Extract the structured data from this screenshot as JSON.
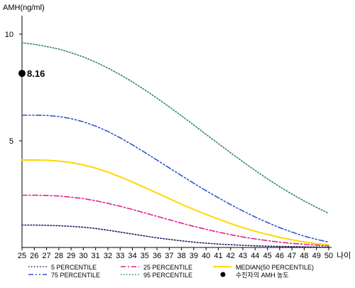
{
  "chart_data": {
    "type": "line",
    "ylabel": "AMH(ng/ml)",
    "xlabel": "나이",
    "xlim": [
      25,
      50
    ],
    "ylim": [
      0,
      11
    ],
    "x_ticks": [
      25,
      26,
      27,
      28,
      29,
      30,
      31,
      32,
      33,
      34,
      35,
      36,
      37,
      38,
      39,
      40,
      41,
      42,
      43,
      44,
      45,
      46,
      47,
      48,
      49,
      50
    ],
    "y_ticks": [
      5,
      10
    ],
    "grid": false,
    "legend_position": "bottom",
    "x": [
      25,
      26,
      27,
      28,
      29,
      30,
      31,
      32,
      33,
      34,
      35,
      36,
      37,
      38,
      39,
      40,
      41,
      42,
      43,
      44,
      45,
      46,
      47,
      48,
      49,
      50
    ],
    "series": [
      {
        "name": "5 PERCENTILE",
        "style": "dotted",
        "color": "#1a1a66",
        "values": [
          1.05,
          1.05,
          1.04,
          1.02,
          0.99,
          0.95,
          0.89,
          0.81,
          0.72,
          0.63,
          0.54,
          0.45,
          0.38,
          0.31,
          0.25,
          0.2,
          0.16,
          0.13,
          0.1,
          0.08,
          0.06,
          0.05,
          0.04,
          0.03,
          0.02,
          0.02
        ]
      },
      {
        "name": "25 PERCENTILE",
        "style": "dash-dot",
        "color": "#e0208f",
        "values": [
          2.45,
          2.45,
          2.44,
          2.41,
          2.36,
          2.29,
          2.19,
          2.07,
          1.93,
          1.78,
          1.62,
          1.46,
          1.3,
          1.14,
          0.99,
          0.85,
          0.72,
          0.6,
          0.49,
          0.4,
          0.32,
          0.25,
          0.19,
          0.15,
          0.11,
          0.08
        ]
      },
      {
        "name": "MEDIAN(50 PERCENTILE)",
        "style": "solid",
        "color": "#ffd700",
        "values": [
          4.1,
          4.1,
          4.09,
          4.05,
          3.98,
          3.87,
          3.72,
          3.53,
          3.31,
          3.07,
          2.81,
          2.55,
          2.29,
          2.03,
          1.78,
          1.55,
          1.33,
          1.12,
          0.93,
          0.76,
          0.61,
          0.47,
          0.36,
          0.26,
          0.18,
          0.12
        ]
      },
      {
        "name": "75 PERCENTILE",
        "style": "dash-dot-dot",
        "color": "#3355cc",
        "values": [
          6.2,
          6.2,
          6.19,
          6.14,
          6.04,
          5.89,
          5.69,
          5.44,
          5.14,
          4.81,
          4.46,
          4.1,
          3.73,
          3.37,
          3.01,
          2.66,
          2.33,
          2.01,
          1.71,
          1.43,
          1.17,
          0.93,
          0.72,
          0.53,
          0.38,
          0.25
        ]
      },
      {
        "name": "95 PERCENTILE",
        "style": "dotted",
        "color": "#2e8b57",
        "values": [
          9.6,
          9.52,
          9.42,
          9.3,
          9.13,
          8.93,
          8.69,
          8.41,
          8.1,
          7.76,
          7.39,
          7.0,
          6.59,
          6.17,
          5.74,
          5.3,
          4.87,
          4.44,
          4.02,
          3.61,
          3.22,
          2.85,
          2.5,
          2.18,
          1.88,
          1.6
        ]
      }
    ],
    "patient": {
      "label": "수진자의 AMH 농도",
      "x": 25,
      "y": 8.16,
      "value_label": "8.16",
      "color": "#000000"
    },
    "legend": [
      {
        "label": "5 PERCENTILE",
        "series": 0
      },
      {
        "label": "25 PERCENTILE",
        "series": 1
      },
      {
        "label": "MEDIAN(50 PERCENTILE)",
        "series": 2
      },
      {
        "label": "75 PERCENTILE",
        "series": 3
      },
      {
        "label": "95 PERCENTILE",
        "series": 4
      },
      {
        "label": "수진자의 AMH 농도",
        "series": "patient"
      }
    ]
  }
}
